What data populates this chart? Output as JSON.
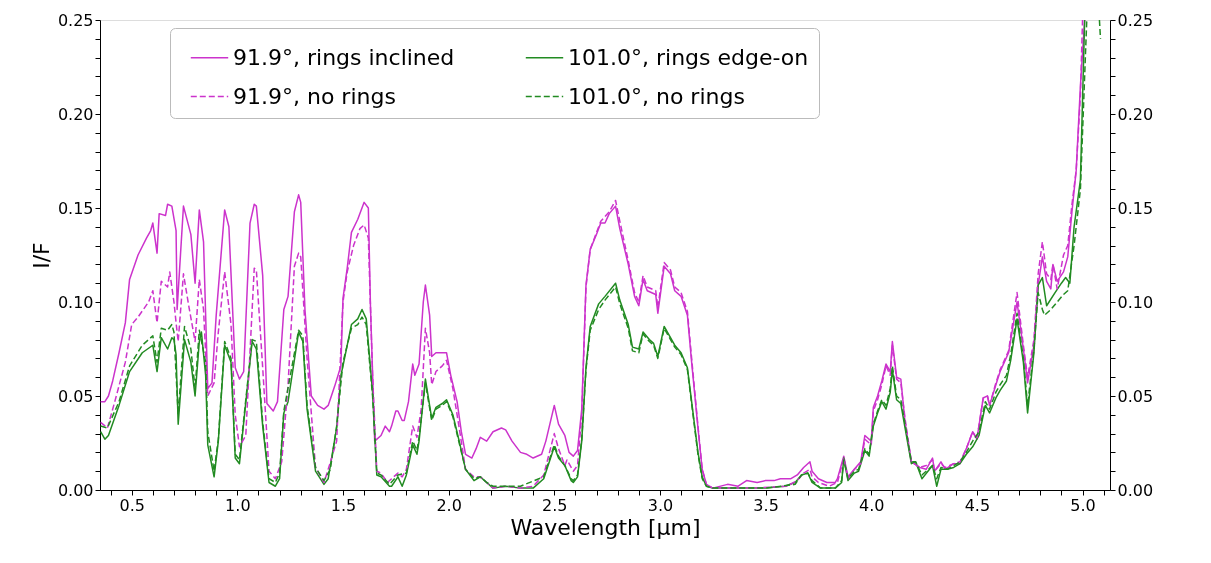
{
  "chart_data": {
    "type": "line",
    "xlabel": "Wavelength [µm]",
    "ylabel": "I/F",
    "xlim": [
      0.35,
      5.13
    ],
    "ylim": [
      0,
      0.25
    ],
    "y2lim": [
      0,
      0.25
    ],
    "xticks": [
      {
        "value": 0.4,
        "label": null
      },
      0.5,
      {
        "value": 0.6,
        "label": null
      },
      {
        "value": 0.7,
        "label": null
      },
      {
        "value": 0.8,
        "label": null
      },
      {
        "value": 0.9,
        "label": null
      },
      {
        "value": 1.0,
        "label": "1.0"
      },
      {
        "value": 1.1,
        "label": null
      },
      {
        "value": 1.2,
        "label": null
      },
      {
        "value": 1.3,
        "label": null
      },
      {
        "value": 1.4,
        "label": null
      },
      1.5,
      {
        "value": 1.6,
        "label": null
      },
      {
        "value": 1.7,
        "label": null
      },
      {
        "value": 1.8,
        "label": null
      },
      {
        "value": 1.9,
        "label": null
      },
      {
        "value": 2.0,
        "label": "2.0"
      },
      {
        "value": 2.1,
        "label": null
      },
      {
        "value": 2.2,
        "label": null
      },
      {
        "value": 2.3,
        "label": null
      },
      {
        "value": 2.4,
        "label": null
      },
      2.5,
      {
        "value": 2.6,
        "label": null
      },
      {
        "value": 2.7,
        "label": null
      },
      {
        "value": 2.8,
        "label": null
      },
      {
        "value": 2.9,
        "label": null
      },
      {
        "value": 3.0,
        "label": "3.0"
      },
      {
        "value": 3.1,
        "label": null
      },
      {
        "value": 3.2,
        "label": null
      },
      {
        "value": 3.3,
        "label": null
      },
      {
        "value": 3.4,
        "label": null
      },
      3.5,
      {
        "value": 3.6,
        "label": null
      },
      {
        "value": 3.7,
        "label": null
      },
      {
        "value": 3.8,
        "label": null
      },
      {
        "value": 3.9,
        "label": null
      },
      {
        "value": 4.0,
        "label": "4.0"
      },
      {
        "value": 4.1,
        "label": null
      },
      {
        "value": 4.2,
        "label": null
      },
      {
        "value": 4.3,
        "label": null
      },
      {
        "value": 4.4,
        "label": null
      },
      4.5,
      {
        "value": 4.6,
        "label": null
      },
      {
        "value": 4.7,
        "label": null
      },
      {
        "value": 4.8,
        "label": null
      },
      {
        "value": 4.9,
        "label": null
      },
      {
        "value": 5.0,
        "label": "5.0"
      },
      {
        "value": 5.1,
        "label": null
      }
    ],
    "yticks": [
      {
        "value": 0,
        "label": "0.00"
      },
      {
        "value": 0.01,
        "label": null
      },
      {
        "value": 0.02,
        "label": null
      },
      {
        "value": 0.03,
        "label": null
      },
      {
        "value": 0.04,
        "label": null
      },
      0.05,
      {
        "value": 0.06,
        "label": null
      },
      {
        "value": 0.07,
        "label": null
      },
      {
        "value": 0.08,
        "label": null
      },
      {
        "value": 0.09,
        "label": null
      },
      {
        "value": 0.1,
        "label": "0.10"
      },
      {
        "value": 0.11,
        "label": null
      },
      {
        "value": 0.12,
        "label": null
      },
      {
        "value": 0.13,
        "label": null
      },
      {
        "value": 0.14,
        "label": null
      },
      0.15,
      {
        "value": 0.16,
        "label": null
      },
      {
        "value": 0.17,
        "label": null
      },
      {
        "value": 0.18,
        "label": null
      },
      {
        "value": 0.19,
        "label": null
      },
      {
        "value": 0.2,
        "label": "0.20"
      },
      {
        "value": 0.21,
        "label": null
      },
      {
        "value": 0.22,
        "label": null
      },
      {
        "value": 0.23,
        "label": null
      },
      {
        "value": 0.24,
        "label": null
      },
      0.25
    ],
    "y2ticks": [
      {
        "value": 0,
        "label": "0.00"
      },
      {
        "value": 0.01,
        "label": null
      },
      {
        "value": 0.02,
        "label": null
      },
      {
        "value": 0.03,
        "label": null
      },
      {
        "value": 0.04,
        "label": null
      },
      0.05,
      {
        "value": 0.06,
        "label": null
      },
      {
        "value": 0.07,
        "label": null
      },
      {
        "value": 0.08,
        "label": null
      },
      {
        "value": 0.09,
        "label": null
      },
      {
        "value": 0.1,
        "label": "0.10"
      },
      {
        "value": 0.11,
        "label": null
      },
      {
        "value": 0.12,
        "label": null
      },
      {
        "value": 0.13,
        "label": null
      },
      {
        "value": 0.14,
        "label": null
      },
      0.15,
      {
        "value": 0.16,
        "label": null
      },
      {
        "value": 0.17,
        "label": null
      },
      {
        "value": 0.18,
        "label": null
      },
      {
        "value": 0.19,
        "label": null
      },
      {
        "value": 0.2,
        "label": "0.20"
      },
      {
        "value": 0.21,
        "label": null
      },
      {
        "value": 0.22,
        "label": null
      },
      {
        "value": 0.23,
        "label": null
      },
      {
        "value": 0.24,
        "label": null
      },
      0.25
    ],
    "grid": false,
    "legend": "top",
    "marker": "none",
    "series": [
      {
        "name": "91.9°, rings inclined",
        "color": "#cc33cc",
        "line_style": "solid",
        "x": [
          0.353,
          0.373,
          0.39,
          0.41,
          0.44,
          0.47,
          0.49,
          0.53,
          0.57,
          0.59,
          0.6,
          0.62,
          0.63,
          0.66,
          0.67,
          0.69,
          0.71,
          0.715,
          0.745,
          0.78,
          0.8,
          0.82,
          0.84,
          0.85,
          0.86,
          0.88,
          0.9,
          0.94,
          0.96,
          0.99,
          1.01,
          1.03,
          1.06,
          1.08,
          1.09,
          1.12,
          1.14,
          1.17,
          1.19,
          1.22,
          1.24,
          1.27,
          1.29,
          1.3,
          1.32,
          1.35,
          1.38,
          1.41,
          1.43,
          1.46,
          1.49,
          1.5,
          1.52,
          1.54,
          1.57,
          1.6,
          1.62,
          1.63,
          1.65,
          1.68,
          1.7,
          1.72,
          1.73,
          1.75,
          1.76,
          1.78,
          1.79,
          1.81,
          1.83,
          1.84,
          1.86,
          1.88,
          1.89,
          1.91,
          1.92,
          1.94,
          1.97,
          1.99,
          2.01,
          2.04,
          2.06,
          2.08,
          2.11,
          2.13,
          2.15,
          2.18,
          2.21,
          2.25,
          2.27,
          2.3,
          2.34,
          2.37,
          2.4,
          2.44,
          2.46,
          2.5,
          2.52,
          2.55,
          2.57,
          2.59,
          2.61,
          2.63,
          2.65,
          2.67,
          2.7,
          2.72,
          2.74,
          2.76,
          2.79,
          2.81,
          2.85,
          2.88,
          2.9,
          2.92,
          2.94,
          2.98,
          2.99,
          3.02,
          3.05,
          3.07,
          3.1,
          3.13,
          3.15,
          3.18,
          3.2,
          3.22,
          3.25,
          3.32,
          3.37,
          3.41,
          3.46,
          3.5,
          3.54,
          3.57,
          3.62,
          3.65,
          3.68,
          3.71,
          3.72,
          3.75,
          3.79,
          3.83,
          3.84,
          3.87,
          3.89,
          3.92,
          3.95,
          3.97,
          4.0,
          4.01,
          4.03,
          4.05,
          4.07,
          4.09,
          4.1,
          4.12,
          4.14,
          4.16,
          4.19,
          4.23,
          4.26,
          4.29,
          4.3,
          4.33,
          4.35,
          4.39,
          4.42,
          4.45,
          4.48,
          4.5,
          4.53,
          4.55,
          4.56,
          4.59,
          4.61,
          4.63,
          4.65,
          4.69,
          4.72,
          4.74,
          4.77,
          4.79,
          4.81,
          4.83,
          4.85,
          4.86,
          4.88,
          4.91,
          4.93,
          4.95,
          4.97,
          4.99,
          5.01
        ],
        "values": [
          0.047,
          0.047,
          0.05,
          0.058,
          0.073,
          0.089,
          0.112,
          0.125,
          0.134,
          0.138,
          0.142,
          0.126,
          0.147,
          0.146,
          0.152,
          0.151,
          0.138,
          0.096,
          0.151,
          0.136,
          0.11,
          0.149,
          0.132,
          0.093,
          0.054,
          0.057,
          0.093,
          0.149,
          0.14,
          0.065,
          0.059,
          0.063,
          0.142,
          0.152,
          0.151,
          0.114,
          0.046,
          0.042,
          0.047,
          0.096,
          0.103,
          0.148,
          0.157,
          0.153,
          0.096,
          0.05,
          0.045,
          0.043,
          0.045,
          0.055,
          0.066,
          0.102,
          0.118,
          0.137,
          0.144,
          0.153,
          0.15,
          0.098,
          0.026,
          0.029,
          0.034,
          0.031,
          0.034,
          0.042,
          0.042,
          0.037,
          0.037,
          0.047,
          0.067,
          0.061,
          0.067,
          0.1,
          0.109,
          0.093,
          0.071,
          0.073,
          0.073,
          0.073,
          0.061,
          0.047,
          0.031,
          0.019,
          0.017,
          0.022,
          0.028,
          0.026,
          0.031,
          0.033,
          0.032,
          0.026,
          0.02,
          0.019,
          0.017,
          0.019,
          0.026,
          0.045,
          0.035,
          0.029,
          0.02,
          0.018,
          0.021,
          0.043,
          0.109,
          0.128,
          0.136,
          0.142,
          0.142,
          0.147,
          0.151,
          0.139,
          0.12,
          0.103,
          0.098,
          0.112,
          0.106,
          0.104,
          0.094,
          0.119,
          0.115,
          0.106,
          0.103,
          0.093,
          0.068,
          0.033,
          0.011,
          0.003,
          0.001,
          0.003,
          0.002,
          0.005,
          0.004,
          0.005,
          0.005,
          0.006,
          0.006,
          0.008,
          0.012,
          0.015,
          0.01,
          0.006,
          0.004,
          0.004,
          0.006,
          0.018,
          0.007,
          0.011,
          0.015,
          0.029,
          0.026,
          0.044,
          0.05,
          0.058,
          0.067,
          0.063,
          0.079,
          0.06,
          0.059,
          0.036,
          0.015,
          0.012,
          0.011,
          0.017,
          0.01,
          0.015,
          0.011,
          0.014,
          0.014,
          0.022,
          0.031,
          0.027,
          0.049,
          0.05,
          0.045,
          0.056,
          0.063,
          0.068,
          0.073,
          0.1,
          0.075,
          0.057,
          0.077,
          0.109,
          0.124,
          0.111,
          0.107,
          0.12,
          0.111,
          0.116,
          0.124,
          0.148,
          0.17,
          0.215,
          0.25
        ]
      },
      {
        "name": "101.0°, rings edge-on",
        "color": "#228b22",
        "line_style": "solid",
        "x": [
          0.353,
          0.373,
          0.39,
          0.44,
          0.49,
          0.55,
          0.6,
          0.62,
          0.64,
          0.67,
          0.69,
          0.7,
          0.71,
          0.72,
          0.75,
          0.78,
          0.8,
          0.82,
          0.83,
          0.85,
          0.86,
          0.89,
          0.91,
          0.94,
          0.97,
          0.99,
          1.01,
          1.07,
          1.09,
          1.12,
          1.15,
          1.18,
          1.2,
          1.22,
          1.24,
          1.29,
          1.31,
          1.33,
          1.37,
          1.41,
          1.43,
          1.47,
          1.49,
          1.5,
          1.54,
          1.57,
          1.59,
          1.61,
          1.64,
          1.66,
          1.68,
          1.72,
          1.73,
          1.76,
          1.78,
          1.8,
          1.83,
          1.85,
          1.86,
          1.89,
          1.92,
          1.94,
          1.97,
          1.99,
          2.02,
          2.05,
          2.08,
          2.12,
          2.15,
          2.18,
          2.21,
          2.27,
          2.34,
          2.4,
          2.45,
          2.5,
          2.52,
          2.55,
          2.58,
          2.59,
          2.61,
          2.63,
          2.65,
          2.67,
          2.71,
          2.74,
          2.79,
          2.81,
          2.85,
          2.87,
          2.9,
          2.92,
          2.95,
          2.97,
          2.99,
          3.02,
          3.05,
          3.07,
          3.1,
          3.13,
          3.15,
          3.18,
          3.2,
          3.22,
          3.25,
          3.37,
          3.5,
          3.59,
          3.64,
          3.67,
          3.7,
          3.72,
          3.76,
          3.83,
          3.86,
          3.87,
          3.89,
          3.92,
          3.94,
          3.97,
          3.99,
          4.01,
          4.03,
          4.05,
          4.07,
          4.09,
          4.1,
          4.12,
          4.14,
          4.16,
          4.19,
          4.21,
          4.24,
          4.29,
          4.31,
          4.33,
          4.36,
          4.39,
          4.42,
          4.45,
          4.48,
          4.51,
          4.54,
          4.56,
          4.59,
          4.61,
          4.64,
          4.66,
          4.69,
          4.72,
          4.74,
          4.77,
          4.79,
          4.81,
          4.83,
          4.87,
          4.9,
          4.92,
          4.94,
          4.96,
          4.99,
          5.01
        ],
        "values": [
          0.031,
          0.027,
          0.029,
          0.045,
          0.063,
          0.073,
          0.077,
          0.063,
          0.081,
          0.075,
          0.081,
          0.08,
          0.072,
          0.035,
          0.08,
          0.068,
          0.05,
          0.079,
          0.084,
          0.061,
          0.024,
          0.007,
          0.026,
          0.077,
          0.068,
          0.017,
          0.014,
          0.079,
          0.075,
          0.034,
          0.004,
          0.002,
          0.006,
          0.041,
          0.047,
          0.084,
          0.079,
          0.043,
          0.01,
          0.003,
          0.006,
          0.033,
          0.061,
          0.066,
          0.088,
          0.091,
          0.096,
          0.091,
          0.052,
          0.008,
          0.007,
          0.002,
          0.002,
          0.007,
          0.002,
          0.008,
          0.024,
          0.019,
          0.026,
          0.059,
          0.038,
          0.044,
          0.046,
          0.048,
          0.04,
          0.026,
          0.011,
          0.005,
          0.007,
          0.004,
          0.001,
          0.002,
          0.001,
          0.001,
          0.006,
          0.023,
          0.017,
          0.013,
          0.005,
          0.004,
          0.007,
          0.026,
          0.065,
          0.087,
          0.099,
          0.103,
          0.11,
          0.101,
          0.088,
          0.076,
          0.075,
          0.084,
          0.08,
          0.078,
          0.071,
          0.087,
          0.081,
          0.077,
          0.073,
          0.065,
          0.047,
          0.02,
          0.007,
          0.002,
          0.001,
          0.001,
          0.001,
          0.002,
          0.004,
          0.008,
          0.009,
          0.004,
          0.001,
          0.001,
          0.004,
          0.017,
          0.005,
          0.009,
          0.01,
          0.021,
          0.018,
          0.034,
          0.041,
          0.047,
          0.043,
          0.052,
          0.064,
          0.048,
          0.046,
          0.033,
          0.014,
          0.015,
          0.006,
          0.013,
          0.002,
          0.011,
          0.011,
          0.012,
          0.014,
          0.019,
          0.023,
          0.029,
          0.045,
          0.041,
          0.049,
          0.053,
          0.058,
          0.069,
          0.091,
          0.068,
          0.041,
          0.073,
          0.109,
          0.113,
          0.098,
          0.105,
          0.11,
          0.113,
          0.11,
          0.14,
          0.165,
          0.25
        ]
      },
      {
        "name": "91.9°, no rings",
        "color": "#cc33cc",
        "line_style": "dashed",
        "x": [
          0.353,
          0.385,
          0.42,
          0.47,
          0.5,
          0.53,
          0.58,
          0.6,
          0.62,
          0.64,
          0.67,
          0.68,
          0.7,
          0.71,
          0.72,
          0.745,
          0.77,
          0.8,
          0.82,
          0.84,
          0.86,
          0.89,
          0.91,
          0.94,
          0.97,
          0.99,
          1.01,
          1.04,
          1.07,
          1.08,
          1.09,
          1.12,
          1.15,
          1.18,
          1.21,
          1.24,
          1.27,
          1.29,
          1.3,
          1.33,
          1.37,
          1.41,
          1.43,
          1.47,
          1.5,
          1.52,
          1.55,
          1.58,
          1.6,
          1.62,
          1.64,
          1.66,
          1.68,
          1.71,
          1.73,
          1.76,
          1.78,
          1.8,
          1.83,
          1.85,
          1.87,
          1.89,
          1.91,
          1.92,
          1.94,
          1.97,
          1.99,
          2.02,
          2.05,
          2.08,
          2.12,
          2.15,
          2.18,
          2.21,
          2.27,
          2.34,
          2.4,
          2.45,
          2.5,
          2.52,
          2.55,
          2.56,
          2.59,
          2.61,
          2.63,
          2.65,
          2.67,
          2.7,
          2.72,
          2.76,
          2.79,
          2.81,
          2.85,
          2.88,
          2.9,
          2.92,
          2.94,
          2.98,
          2.99,
          3.02,
          3.05,
          3.07,
          3.1,
          3.13,
          3.15,
          3.18,
          3.2,
          3.22,
          3.25,
          3.45,
          3.6,
          3.65,
          3.68,
          3.71,
          3.72,
          3.75,
          3.8,
          3.84,
          3.87,
          3.89,
          3.92,
          3.95,
          3.97,
          4.0,
          4.01,
          4.03,
          4.05,
          4.07,
          4.09,
          4.1,
          4.12,
          4.14,
          4.16,
          4.19,
          4.23,
          4.26,
          4.29,
          4.3,
          4.33,
          4.35,
          4.39,
          4.42,
          4.45,
          4.48,
          4.5,
          4.53,
          4.55,
          4.56,
          4.59,
          4.61,
          4.63,
          4.65,
          4.69,
          4.72,
          4.74,
          4.77,
          4.79,
          4.81,
          4.83,
          4.85,
          4.86,
          4.88,
          4.91,
          4.93,
          4.95,
          4.97,
          4.99,
          5.0
        ],
        "values": [
          0.036,
          0.033,
          0.047,
          0.068,
          0.088,
          0.092,
          0.1,
          0.106,
          0.089,
          0.111,
          0.108,
          0.116,
          0.1,
          0.089,
          0.079,
          0.115,
          0.098,
          0.079,
          0.112,
          0.096,
          0.05,
          0.057,
          0.084,
          0.116,
          0.088,
          0.04,
          0.023,
          0.029,
          0.096,
          0.118,
          0.117,
          0.065,
          0.01,
          0.006,
          0.015,
          0.056,
          0.119,
          0.126,
          0.124,
          0.07,
          0.012,
          0.004,
          0.011,
          0.026,
          0.1,
          0.116,
          0.13,
          0.139,
          0.141,
          0.134,
          0.061,
          0.01,
          0.009,
          0.004,
          0.006,
          0.009,
          0.007,
          0.011,
          0.034,
          0.028,
          0.043,
          0.086,
          0.073,
          0.056,
          0.063,
          0.066,
          0.069,
          0.054,
          0.033,
          0.011,
          0.007,
          0.007,
          0.004,
          0.001,
          0.002,
          0.001,
          0.002,
          0.008,
          0.03,
          0.022,
          0.013,
          0.016,
          0.01,
          0.013,
          0.04,
          0.108,
          0.128,
          0.137,
          0.143,
          0.148,
          0.154,
          0.143,
          0.122,
          0.105,
          0.1,
          0.114,
          0.108,
          0.106,
          0.097,
          0.121,
          0.117,
          0.108,
          0.105,
          0.095,
          0.07,
          0.034,
          0.011,
          0.003,
          0.001,
          0.001,
          0.002,
          0.005,
          0.009,
          0.011,
          0.007,
          0.004,
          0.002,
          0.004,
          0.017,
          0.006,
          0.011,
          0.014,
          0.027,
          0.024,
          0.042,
          0.048,
          0.056,
          0.066,
          0.061,
          0.077,
          0.059,
          0.057,
          0.038,
          0.015,
          0.012,
          0.013,
          0.016,
          0.01,
          0.014,
          0.012,
          0.014,
          0.015,
          0.022,
          0.031,
          0.027,
          0.049,
          0.05,
          0.045,
          0.057,
          0.064,
          0.069,
          0.074,
          0.105,
          0.077,
          0.06,
          0.08,
          0.115,
          0.132,
          0.115,
          0.112,
          0.12,
          0.107,
          0.125,
          0.13,
          0.152,
          0.17,
          0.21,
          0.25
        ]
      },
      {
        "name": "101.0°, no rings",
        "color": "#228b22",
        "line_style": "dashed",
        "x": [
          0.353,
          0.385,
          0.44,
          0.49,
          0.55,
          0.6,
          0.62,
          0.64,
          0.67,
          0.69,
          0.7,
          0.72,
          0.75,
          0.78,
          0.8,
          0.82,
          0.85,
          0.86,
          0.89,
          0.91,
          0.94,
          0.97,
          0.99,
          1.01,
          1.07,
          1.09,
          1.12,
          1.15,
          1.18,
          1.2,
          1.22,
          1.29,
          1.31,
          1.33,
          1.37,
          1.41,
          1.44,
          1.47,
          1.5,
          1.54,
          1.57,
          1.59,
          1.61,
          1.64,
          1.66,
          1.68,
          1.72,
          1.76,
          1.8,
          1.83,
          1.85,
          1.86,
          1.89,
          1.92,
          1.94,
          1.97,
          1.99,
          2.02,
          2.05,
          2.08,
          2.12,
          2.15,
          2.18,
          2.21,
          2.34,
          2.45,
          2.5,
          2.52,
          2.55,
          2.58,
          2.59,
          2.61,
          2.63,
          2.65,
          2.67,
          2.71,
          2.74,
          2.79,
          2.81,
          2.85,
          2.87,
          2.9,
          2.92,
          2.95,
          2.97,
          2.99,
          3.02,
          3.05,
          3.07,
          3.1,
          3.13,
          3.15,
          3.18,
          3.2,
          3.22,
          3.25,
          3.5,
          3.64,
          3.67,
          3.7,
          3.72,
          3.76,
          3.83,
          3.86,
          3.87,
          3.89,
          3.92,
          3.94,
          3.97,
          3.99,
          4.01,
          4.03,
          4.05,
          4.07,
          4.09,
          4.1,
          4.12,
          4.14,
          4.16,
          4.19,
          4.21,
          4.24,
          4.29,
          4.31,
          4.33,
          4.36,
          4.39,
          4.42,
          4.45,
          4.48,
          4.51,
          4.54,
          4.56,
          4.59,
          4.61,
          4.64,
          4.66,
          4.69,
          4.72,
          4.74,
          4.77,
          4.79,
          4.81,
          4.82,
          4.85,
          4.88,
          4.91,
          4.93,
          4.96,
          4.99,
          5.02,
          5.05,
          5.08,
          5.085
        ],
        "values": [
          0.034,
          0.033,
          0.047,
          0.066,
          0.077,
          0.082,
          0.068,
          0.086,
          0.085,
          0.088,
          0.084,
          0.04,
          0.087,
          0.075,
          0.054,
          0.085,
          0.068,
          0.031,
          0.01,
          0.027,
          0.079,
          0.07,
          0.019,
          0.016,
          0.08,
          0.079,
          0.036,
          0.006,
          0.004,
          0.009,
          0.042,
          0.085,
          0.082,
          0.045,
          0.012,
          0.005,
          0.011,
          0.034,
          0.068,
          0.086,
          0.088,
          0.092,
          0.088,
          0.05,
          0.009,
          0.008,
          0.003,
          0.008,
          0.009,
          0.026,
          0.021,
          0.028,
          0.057,
          0.037,
          0.043,
          0.045,
          0.047,
          0.039,
          0.025,
          0.011,
          0.006,
          0.007,
          0.004,
          0.002,
          0.002,
          0.007,
          0.024,
          0.018,
          0.013,
          0.006,
          0.005,
          0.008,
          0.027,
          0.064,
          0.085,
          0.096,
          0.101,
          0.108,
          0.099,
          0.086,
          0.074,
          0.073,
          0.083,
          0.079,
          0.077,
          0.07,
          0.086,
          0.08,
          0.076,
          0.072,
          0.064,
          0.046,
          0.019,
          0.006,
          0.002,
          0.001,
          0.001,
          0.003,
          0.008,
          0.009,
          0.005,
          0.001,
          0.001,
          0.005,
          0.016,
          0.006,
          0.01,
          0.011,
          0.022,
          0.019,
          0.035,
          0.042,
          0.048,
          0.045,
          0.054,
          0.066,
          0.05,
          0.048,
          0.035,
          0.015,
          0.015,
          0.008,
          0.013,
          0.006,
          0.012,
          0.011,
          0.013,
          0.015,
          0.02,
          0.026,
          0.031,
          0.047,
          0.043,
          0.052,
          0.056,
          0.061,
          0.072,
          0.094,
          0.07,
          0.045,
          0.075,
          0.105,
          0.096,
          0.093,
          0.096,
          0.1,
          0.104,
          0.106,
          0.13,
          0.16,
          0.25,
          null,
          0.25,
          0.24
        ]
      }
    ]
  }
}
